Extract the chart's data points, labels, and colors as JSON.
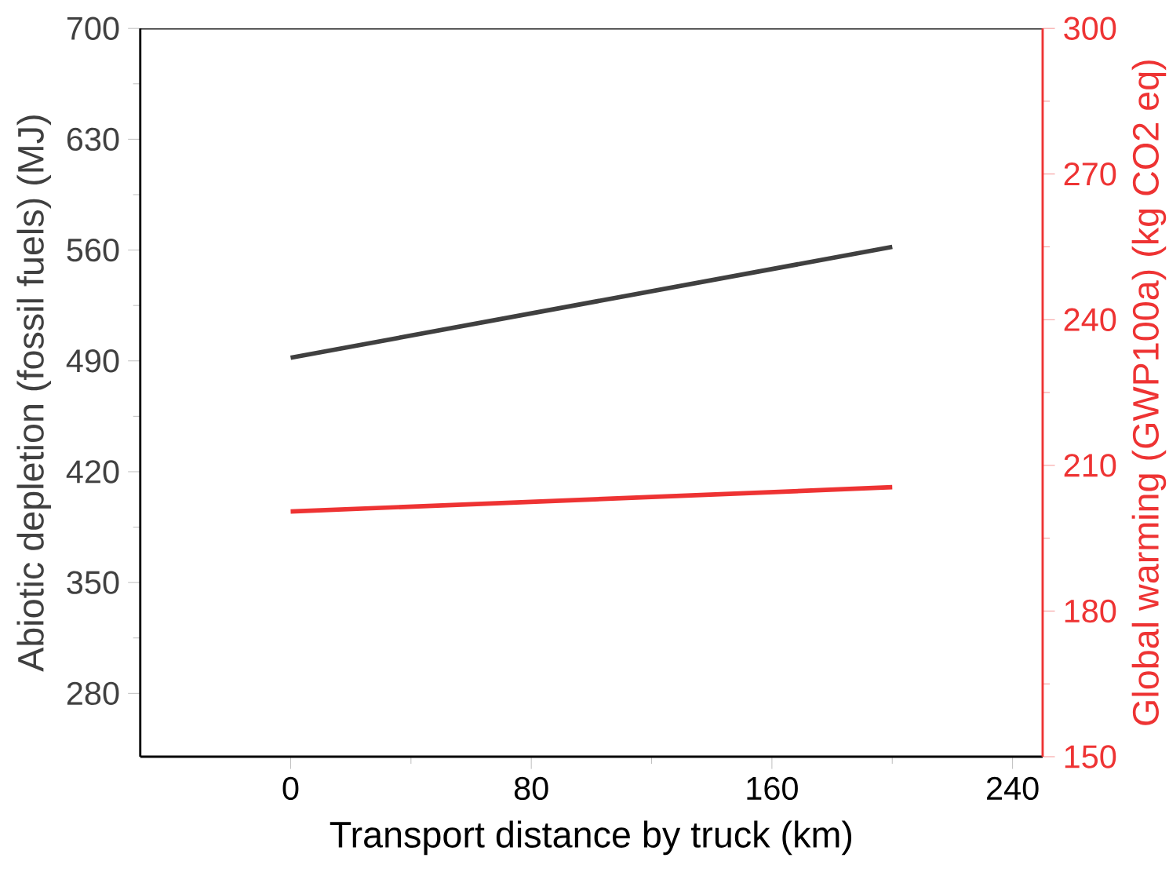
{
  "chart_data": {
    "type": "line",
    "xlabel": "Transport distance by truck (km)",
    "ylabel": "Abiotic depletion (fossil fuels) (MJ)",
    "y2label": "Global warming (GWP100a) (kg CO2 eq)",
    "x": [
      0,
      200
    ],
    "series": [
      {
        "color": "#404040",
        "values": [
          492,
          562
        ]
      },
      {
        "color": "#ee3333",
        "values": [
          200.5,
          205.5
        ],
        "axis": "y2"
      }
    ],
    "xlim": [
      -50,
      250
    ],
    "xticks": [
      0,
      80,
      160,
      240
    ],
    "ylim": [
      240,
      700
    ],
    "yticks": [
      280,
      350,
      420,
      490,
      560,
      630,
      700
    ],
    "y2lim": [
      150,
      300
    ],
    "y2ticks": [
      150,
      180,
      210,
      240,
      270,
      300
    ],
    "marker": "none",
    "line_style": "solid"
  }
}
